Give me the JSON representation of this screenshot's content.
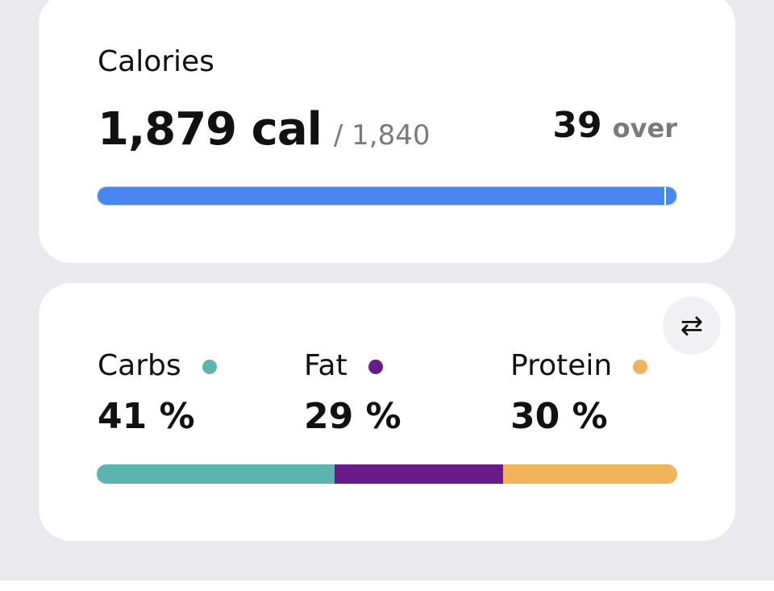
{
  "calories": {
    "title": "Calories",
    "consumed": 1879,
    "consumed_label": "1,879 cal",
    "goal": 1840,
    "goal_label": "/ 1,840",
    "over": 39,
    "over_label": "over",
    "color": "#4a86f0"
  },
  "macros": [
    {
      "name": "Carbs",
      "percent": 41,
      "percent_label": "41 %",
      "color": "#5bb5ad"
    },
    {
      "name": "Fat",
      "percent": 29,
      "percent_label": "29 %",
      "color": "#6a1b8a"
    },
    {
      "name": "Protein",
      "percent": 30,
      "percent_label": "30 %",
      "color": "#f2b45a"
    }
  ]
}
